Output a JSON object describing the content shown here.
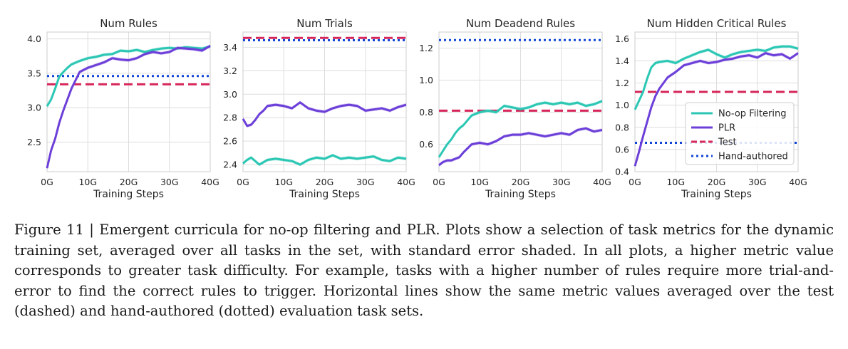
{
  "legend": {
    "noop": "No-op Filtering",
    "plr": "PLR",
    "test": "Test",
    "hand": "Hand-authored"
  },
  "colors": {
    "noop": "#2bc7b4",
    "plr": "#6c3fd9",
    "test": "#d6265a",
    "hand": "#1246d6",
    "grid": "#dddddd",
    "frame": "#cccccc"
  },
  "caption": "Figure 11 | Emergent curricula for no-op filtering and PLR. Plots show a selection of task metrics for the dynamic training set, averaged over all tasks in the set, with standard error shaded. In all plots, a higher metric value corresponds to greater task difficulty. For example, tasks with a higher number of rules require more trial-and-error to find the correct rules to trigger. Horizontal lines show the same metric values averaged over the test (dashed) and hand-authored (dotted) evaluation task sets.",
  "chart_data": [
    {
      "type": "line",
      "title": "Num Rules",
      "xlabel": "Training Steps",
      "ylabel": "",
      "x_tick_labels": [
        "0G",
        "10G",
        "20G",
        "30G",
        "40G"
      ],
      "y_ticks": [
        2.5,
        3.0,
        3.5,
        4.0
      ],
      "y_tick_labels": [
        "2.5",
        "3.0",
        "3.5",
        "4.0"
      ],
      "xlim": [
        0,
        40
      ],
      "ylim": [
        2.07,
        4.1
      ],
      "grid": true,
      "x": [
        0,
        1,
        2,
        3,
        4,
        5,
        6,
        8,
        10,
        12,
        14,
        16,
        18,
        20,
        22,
        24,
        26,
        28,
        30,
        32,
        34,
        36,
        38,
        40
      ],
      "series": [
        {
          "name": "No-op Filtering",
          "values": [
            3.02,
            3.12,
            3.28,
            3.45,
            3.52,
            3.58,
            3.63,
            3.68,
            3.72,
            3.74,
            3.77,
            3.78,
            3.83,
            3.82,
            3.84,
            3.81,
            3.84,
            3.86,
            3.87,
            3.86,
            3.88,
            3.87,
            3.86,
            3.89
          ]
        },
        {
          "name": "PLR",
          "values": [
            2.12,
            2.38,
            2.55,
            2.78,
            2.96,
            3.12,
            3.28,
            3.52,
            3.58,
            3.62,
            3.66,
            3.72,
            3.7,
            3.69,
            3.72,
            3.78,
            3.81,
            3.79,
            3.81,
            3.87,
            3.86,
            3.85,
            3.83,
            3.9
          ]
        }
      ],
      "hlines": [
        {
          "name": "Test",
          "value": 3.34
        },
        {
          "name": "Hand-authored",
          "value": 3.46
        }
      ]
    },
    {
      "type": "line",
      "title": "Num Trials",
      "xlabel": "Training Steps",
      "ylabel": "",
      "x_tick_labels": [
        "0G",
        "10G",
        "20G",
        "30G",
        "40G"
      ],
      "y_ticks": [
        2.4,
        2.6,
        2.8,
        3.0,
        3.2,
        3.4
      ],
      "y_tick_labels": [
        "2.4",
        "2.6",
        "2.8",
        "3.0",
        "3.2",
        "3.4"
      ],
      "xlim": [
        0,
        40
      ],
      "ylim": [
        2.34,
        3.53
      ],
      "grid": true,
      "x": [
        0,
        1,
        2,
        3,
        4,
        5,
        6,
        8,
        10,
        12,
        14,
        16,
        18,
        20,
        22,
        24,
        26,
        28,
        30,
        32,
        34,
        36,
        38,
        40
      ],
      "series": [
        {
          "name": "No-op Filtering",
          "values": [
            2.41,
            2.44,
            2.46,
            2.43,
            2.4,
            2.42,
            2.44,
            2.45,
            2.44,
            2.43,
            2.4,
            2.44,
            2.46,
            2.45,
            2.48,
            2.45,
            2.46,
            2.45,
            2.46,
            2.47,
            2.44,
            2.43,
            2.46,
            2.45
          ]
        },
        {
          "name": "PLR",
          "values": [
            2.79,
            2.73,
            2.74,
            2.78,
            2.83,
            2.86,
            2.9,
            2.91,
            2.9,
            2.88,
            2.93,
            2.88,
            2.86,
            2.85,
            2.88,
            2.9,
            2.91,
            2.9,
            2.86,
            2.87,
            2.88,
            2.86,
            2.89,
            2.91
          ]
        }
      ],
      "hlines": [
        {
          "name": "Test",
          "value": 3.48
        },
        {
          "name": "Hand-authored",
          "value": 3.46
        }
      ]
    },
    {
      "type": "line",
      "title": "Num Deadend Rules",
      "xlabel": "Training Steps",
      "ylabel": "",
      "x_tick_labels": [
        "0G",
        "10G",
        "20G",
        "30G",
        "40G"
      ],
      "y_ticks": [
        0.6,
        0.8,
        1.0,
        1.2
      ],
      "y_tick_labels": [
        "0.6",
        "0.8",
        "1.0",
        "1.2"
      ],
      "xlim": [
        0,
        40
      ],
      "ylim": [
        0.43,
        1.3
      ],
      "grid": true,
      "x": [
        0,
        1,
        2,
        3,
        4,
        5,
        6,
        8,
        10,
        12,
        14,
        16,
        18,
        20,
        22,
        24,
        26,
        28,
        30,
        32,
        34,
        36,
        38,
        40
      ],
      "series": [
        {
          "name": "No-op Filtering",
          "values": [
            0.52,
            0.56,
            0.6,
            0.63,
            0.67,
            0.7,
            0.72,
            0.78,
            0.8,
            0.81,
            0.8,
            0.84,
            0.83,
            0.82,
            0.83,
            0.85,
            0.86,
            0.85,
            0.86,
            0.85,
            0.86,
            0.84,
            0.85,
            0.87
          ]
        },
        {
          "name": "PLR",
          "values": [
            0.47,
            0.49,
            0.5,
            0.5,
            0.51,
            0.52,
            0.55,
            0.6,
            0.61,
            0.6,
            0.62,
            0.65,
            0.66,
            0.66,
            0.67,
            0.66,
            0.65,
            0.66,
            0.67,
            0.66,
            0.69,
            0.7,
            0.68,
            0.69
          ]
        }
      ],
      "hlines": [
        {
          "name": "Test",
          "value": 0.81
        },
        {
          "name": "Hand-authored",
          "value": 1.25
        }
      ]
    },
    {
      "type": "line",
      "title": "Num Hidden Critical Rules",
      "xlabel": "Training Steps",
      "ylabel": "",
      "x_tick_labels": [
        "0G",
        "10G",
        "20G",
        "30G",
        "40G"
      ],
      "y_ticks": [
        0.4,
        0.6,
        0.8,
        1.0,
        1.2,
        1.4,
        1.6
      ],
      "y_tick_labels": [
        "0.4",
        "0.6",
        "0.8",
        "1.0",
        "1.2",
        "1.4",
        "1.6"
      ],
      "xlim": [
        0,
        40
      ],
      "ylim": [
        0.4,
        1.66
      ],
      "grid": true,
      "legend_position": "lower-right",
      "x": [
        0,
        1,
        2,
        3,
        4,
        5,
        6,
        8,
        10,
        12,
        14,
        16,
        18,
        20,
        22,
        24,
        26,
        28,
        30,
        32,
        34,
        36,
        38,
        40
      ],
      "series": [
        {
          "name": "No-op Filtering",
          "values": [
            0.96,
            1.04,
            1.12,
            1.24,
            1.34,
            1.38,
            1.39,
            1.4,
            1.38,
            1.42,
            1.45,
            1.48,
            1.5,
            1.46,
            1.43,
            1.46,
            1.48,
            1.49,
            1.5,
            1.49,
            1.52,
            1.53,
            1.53,
            1.51
          ]
        },
        {
          "name": "PLR",
          "values": [
            0.45,
            0.58,
            0.72,
            0.85,
            0.98,
            1.08,
            1.15,
            1.25,
            1.3,
            1.36,
            1.38,
            1.4,
            1.38,
            1.39,
            1.41,
            1.42,
            1.44,
            1.45,
            1.43,
            1.47,
            1.45,
            1.46,
            1.42,
            1.47
          ]
        }
      ],
      "hlines": [
        {
          "name": "Test",
          "value": 1.12
        },
        {
          "name": "Hand-authored",
          "value": 0.66
        }
      ]
    }
  ]
}
